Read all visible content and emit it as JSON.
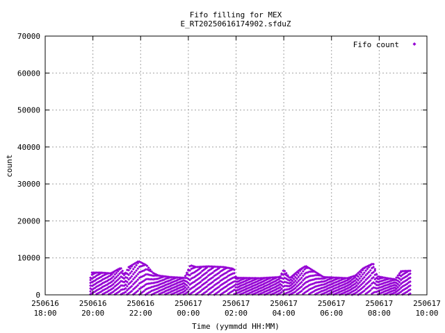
{
  "chart_data": {
    "type": "scatter",
    "title": "Fifo filling for MEX",
    "subtitle": "E_RT20250616174902.sfduZ",
    "xlabel": "Time (yymmdd HH:MM)",
    "ylabel": "count",
    "xlim": [
      "2025-06-16T18:00",
      "2025-06-17T10:00"
    ],
    "ylim": [
      0,
      70000
    ],
    "grid": true,
    "legend": "top-right",
    "y_ticks": [
      "0",
      "10000",
      "20000",
      "30000",
      "40000",
      "50000",
      "60000",
      "70000"
    ],
    "x_ticks": [
      {
        "value": "2025-06-16T18:00",
        "date": "250616",
        "time": "18:00"
      },
      {
        "value": "2025-06-16T20:00",
        "date": "250616",
        "time": "20:00"
      },
      {
        "value": "2025-06-16T22:00",
        "date": "250616",
        "time": "22:00"
      },
      {
        "value": "2025-06-17T00:00",
        "date": "250617",
        "time": "00:00"
      },
      {
        "value": "2025-06-17T02:00",
        "date": "250617",
        "time": "02:00"
      },
      {
        "value": "2025-06-17T04:00",
        "date": "250617",
        "time": "04:00"
      },
      {
        "value": "2025-06-17T06:00",
        "date": "250617",
        "time": "06:00"
      },
      {
        "value": "2025-06-17T08:00",
        "date": "250617",
        "time": "08:00"
      },
      {
        "value": "2025-06-17T10:00",
        "date": "250617",
        "time": "10:00"
      }
    ],
    "series": [
      {
        "name": "Fifo count",
        "color": "#9400d3",
        "marker": "diamond",
        "bands": 6,
        "envelope": [
          {
            "t": "2025-06-16T19:50",
            "max": 0
          },
          {
            "t": "2025-06-16T19:55",
            "max": 6000
          },
          {
            "t": "2025-06-16T20:20",
            "max": 6000
          },
          {
            "t": "2025-06-16T20:45",
            "max": 5800
          },
          {
            "t": "2025-06-16T21:10",
            "max": 7300
          },
          {
            "t": "2025-06-16T21:20",
            "max": 5500
          },
          {
            "t": "2025-06-16T21:30",
            "max": 7500
          },
          {
            "t": "2025-06-16T21:55",
            "max": 9100
          },
          {
            "t": "2025-06-16T22:15",
            "max": 8000
          },
          {
            "t": "2025-06-16T22:30",
            "max": 6000
          },
          {
            "t": "2025-06-16T22:45",
            "max": 5200
          },
          {
            "t": "2025-06-16T23:15",
            "max": 4800
          },
          {
            "t": "2025-06-16T23:50",
            "max": 4600
          },
          {
            "t": "2025-06-17T00:00",
            "max": 6800
          },
          {
            "t": "2025-06-17T00:05",
            "max": 8000
          },
          {
            "t": "2025-06-17T00:20",
            "max": 7500
          },
          {
            "t": "2025-06-17T00:50",
            "max": 7700
          },
          {
            "t": "2025-06-17T01:30",
            "max": 7500
          },
          {
            "t": "2025-06-17T01:55",
            "max": 7000
          },
          {
            "t": "2025-06-17T02:00",
            "max": 4600
          },
          {
            "t": "2025-06-17T03:00",
            "max": 4500
          },
          {
            "t": "2025-06-17T03:50",
            "max": 4800
          },
          {
            "t": "2025-06-17T04:00",
            "max": 6800
          },
          {
            "t": "2025-06-17T04:15",
            "max": 4500
          },
          {
            "t": "2025-06-17T04:40",
            "max": 6800
          },
          {
            "t": "2025-06-17T04:55",
            "max": 7800
          },
          {
            "t": "2025-06-17T05:15",
            "max": 6500
          },
          {
            "t": "2025-06-17T05:40",
            "max": 4800
          },
          {
            "t": "2025-06-17T06:40",
            "max": 4500
          },
          {
            "t": "2025-06-17T07:00",
            "max": 5200
          },
          {
            "t": "2025-06-17T07:20",
            "max": 7200
          },
          {
            "t": "2025-06-17T07:45",
            "max": 8500
          },
          {
            "t": "2025-06-17T07:55",
            "max": 5000
          },
          {
            "t": "2025-06-17T08:20",
            "max": 4500
          },
          {
            "t": "2025-06-17T08:40",
            "max": 4200
          },
          {
            "t": "2025-06-17T08:55",
            "max": 6400
          },
          {
            "t": "2025-06-17T09:20",
            "max": 6500
          }
        ]
      }
    ]
  }
}
